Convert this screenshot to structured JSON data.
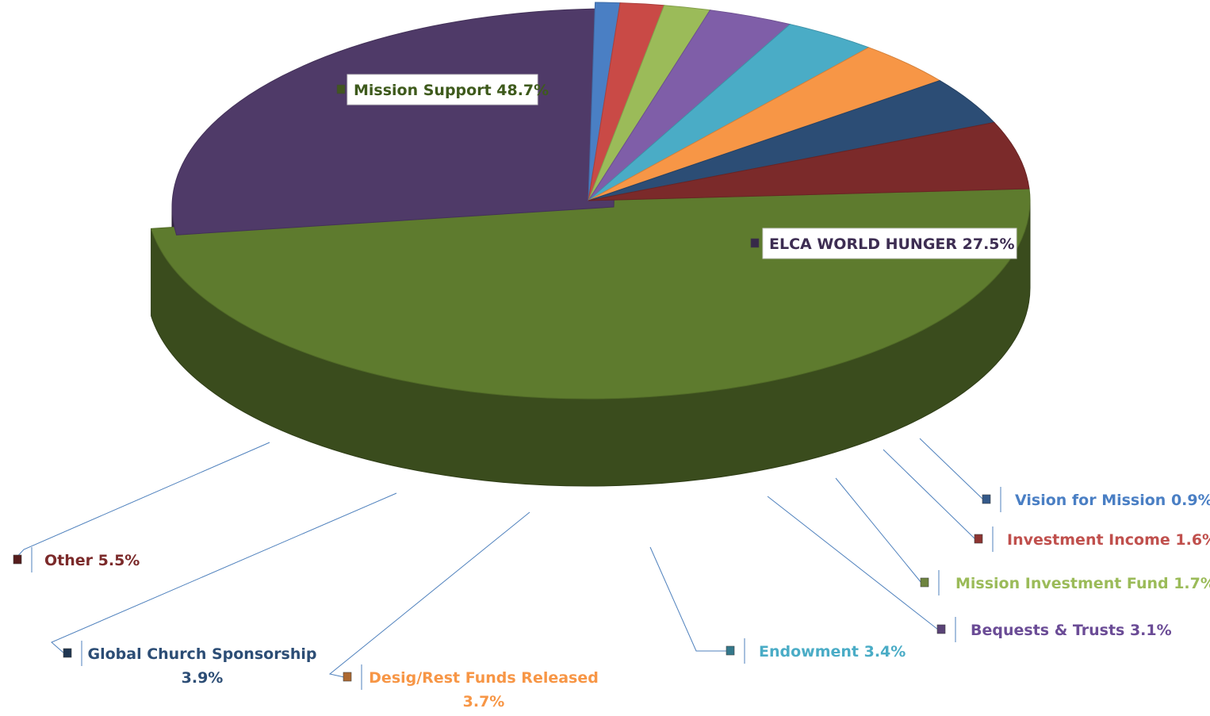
{
  "chart_data": {
    "type": "pie",
    "title": "",
    "slices": [
      {
        "label": "Mission Support",
        "value": 48.7,
        "color": "#5e7b2e",
        "label_lines": [
          "Mission Support 48.7%"
        ],
        "text_color": "#3e5a1c",
        "boxed": true
      },
      {
        "label": "ELCA WORLD HUNGER",
        "value": 27.5,
        "color": "#4f3a68",
        "label_lines": [
          "ELCA WORLD HUNGER   27.5%"
        ],
        "text_color": "#3d2d52",
        "boxed": true
      },
      {
        "label": "Vision for Mission",
        "value": 0.9,
        "color": "#4a7fc4",
        "label_lines": [
          "Vision for Mission 0.9%"
        ],
        "text_color": "#4a7fc4",
        "boxed": false
      },
      {
        "label": "Investment Income",
        "value": 1.6,
        "color": "#c94a46",
        "label_lines": [
          "Investment Income 1.6%"
        ],
        "text_color": "#c0504d",
        "boxed": false
      },
      {
        "label": "Mission Investment Fund",
        "value": 1.7,
        "color": "#9bbb59",
        "label_lines": [
          "Mission Investment Fund 1.7%"
        ],
        "text_color": "#9bbb59",
        "boxed": false
      },
      {
        "label": "Bequests & Trusts",
        "value": 3.1,
        "color": "#7f5ea8",
        "label_lines": [
          "Bequests & Trusts 3.1%"
        ],
        "text_color": "#6b4c96",
        "boxed": false
      },
      {
        "label": "Endowment",
        "value": 3.4,
        "color": "#4aacc6",
        "label_lines": [
          "Endowment 3.4%"
        ],
        "text_color": "#4aacc6",
        "boxed": false
      },
      {
        "label": "Desig/Rest  Funds Released",
        "value": 3.7,
        "color": "#f79646",
        "label_lines": [
          "Desig/Rest  Funds Released",
          "3.7%"
        ],
        "text_color": "#f79646",
        "boxed": false
      },
      {
        "label": "Global Church Sponsorship",
        "value": 3.9,
        "color": "#2c4d75",
        "label_lines": [
          "Global Church Sponsorship",
          "3.9%"
        ],
        "text_color": "#2c4d75",
        "boxed": false
      },
      {
        "label": "Other",
        "value": 5.5,
        "color": "#7b2a2a",
        "label_lines": [
          "Other 5.5%"
        ],
        "text_color": "#7b2a2a",
        "boxed": false
      }
    ],
    "legend": "none",
    "data_labels": "callouts"
  }
}
